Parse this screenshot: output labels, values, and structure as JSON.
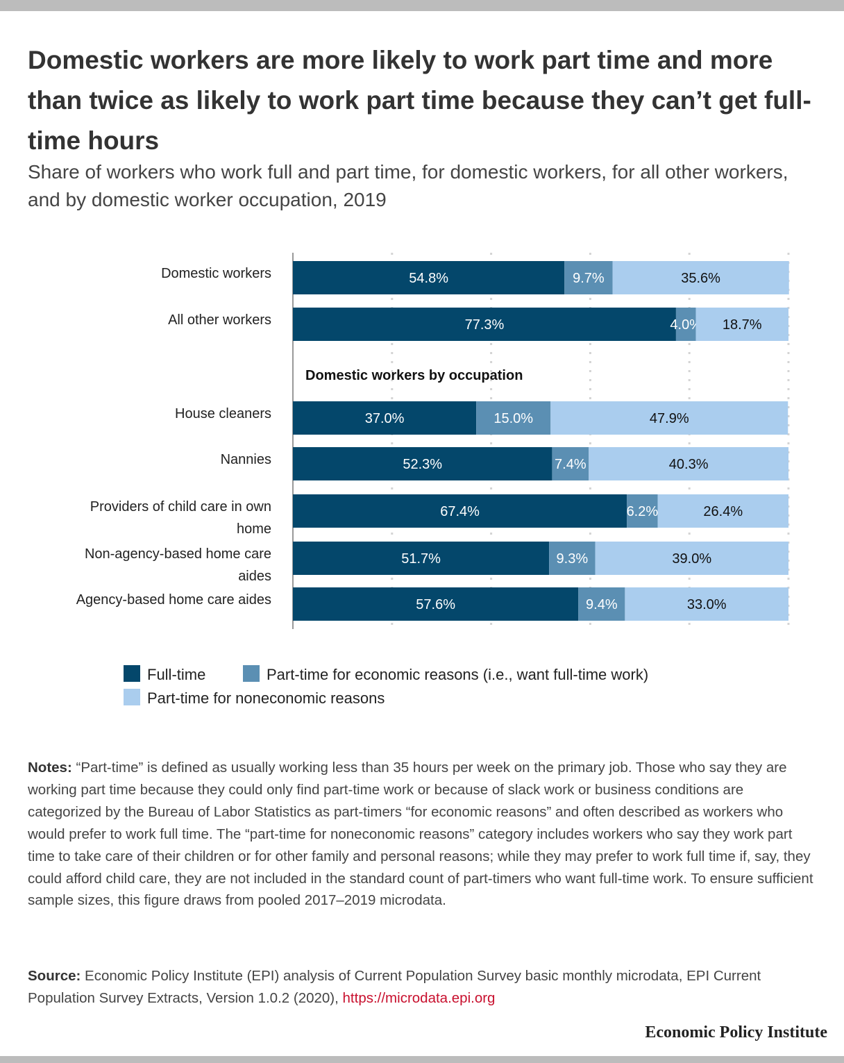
{
  "title": "Domestic workers are more likely to work part time and more than twice as likely to work part time because they can’t get full-time hours",
  "subtitle": "Share of workers who work full and part time, for domestic workers, for all other workers, and by domestic worker occupation, 2019",
  "chart_data": {
    "type": "bar",
    "orientation": "horizontal",
    "stacked": true,
    "xlim": [
      0,
      100
    ],
    "grid": true,
    "legend_position": "bottom",
    "group_label": "Domestic workers by occupation",
    "categories": [
      "Domestic workers",
      "All other workers",
      "House cleaners",
      "Nannies",
      "Providers of child care in own home",
      "Non-agency-based home care aides",
      "Agency-based home care aides"
    ],
    "series": [
      {
        "name": "Full-time",
        "color": "#04476b",
        "values": [
          54.8,
          77.3,
          37.0,
          52.3,
          67.4,
          51.7,
          57.6
        ],
        "labels": [
          "54.8%",
          "77.3%",
          "37.0%",
          "52.3%",
          "67.4%",
          "51.7%",
          "57.6%"
        ]
      },
      {
        "name": "Part-time for economic reasons (i.e., want full-time work)",
        "color": "#5b8fb3",
        "values": [
          9.7,
          4.0,
          15.0,
          7.4,
          6.2,
          9.3,
          9.4
        ],
        "labels": [
          "9.7%",
          "4.0%",
          "15.0%",
          "7.4%",
          "6.2%",
          "9.3%",
          "9.4%"
        ]
      },
      {
        "name": "Part-time for noneconomic reasons",
        "color": "#aacdee",
        "values": [
          35.6,
          18.7,
          47.9,
          40.3,
          26.4,
          39.0,
          33.0
        ],
        "labels": [
          "35.6%",
          "18.7%",
          "47.9%",
          "40.3%",
          "26.4%",
          "39.0%",
          "33.0%"
        ]
      }
    ]
  },
  "category_label_lines": [
    [
      "Domestic workers"
    ],
    [
      "All other workers"
    ],
    [
      "House cleaners"
    ],
    [
      "Nannies"
    ],
    [
      "Providers of child care in own",
      "home"
    ],
    [
      "Non-agency-based home care",
      "aides"
    ],
    [
      "Agency-based home care aides"
    ]
  ],
  "legend": {
    "full_time": "Full-time",
    "econ": "Part-time for economic reasons (i.e., want full-time work)",
    "nonecon": "Part-time for noneconomic reasons"
  },
  "notes_label": "Notes:",
  "notes_text": "“Part-time” is defined as usually working less than 35 hours per week on the primary job. Those who say they are working part time because they could only find part-time work or because of slack work or business conditions are categorized by the Bureau of Labor Statistics as part-timers “for economic reasons” and often described as workers who would prefer to work full time. The “part-time for noneconomic reasons” category includes workers who say they work part time to take care of their children or for other family and personal reasons; while they may prefer to work full time if, say, they could afford child care, they are not included in the standard count of part-timers who want full-time work. To ensure sufficient sample sizes, this figure draws from pooled 2017–2019 microdata.",
  "source_label": "Source:",
  "source_text": "Economic Policy Institute (EPI) analysis of Current Population Survey basic monthly microdata, EPI Current Population Survey Extracts, Version 1.0.2 (2020),",
  "source_link": "https://microdata.epi.org",
  "brand": "Economic Policy Institute"
}
